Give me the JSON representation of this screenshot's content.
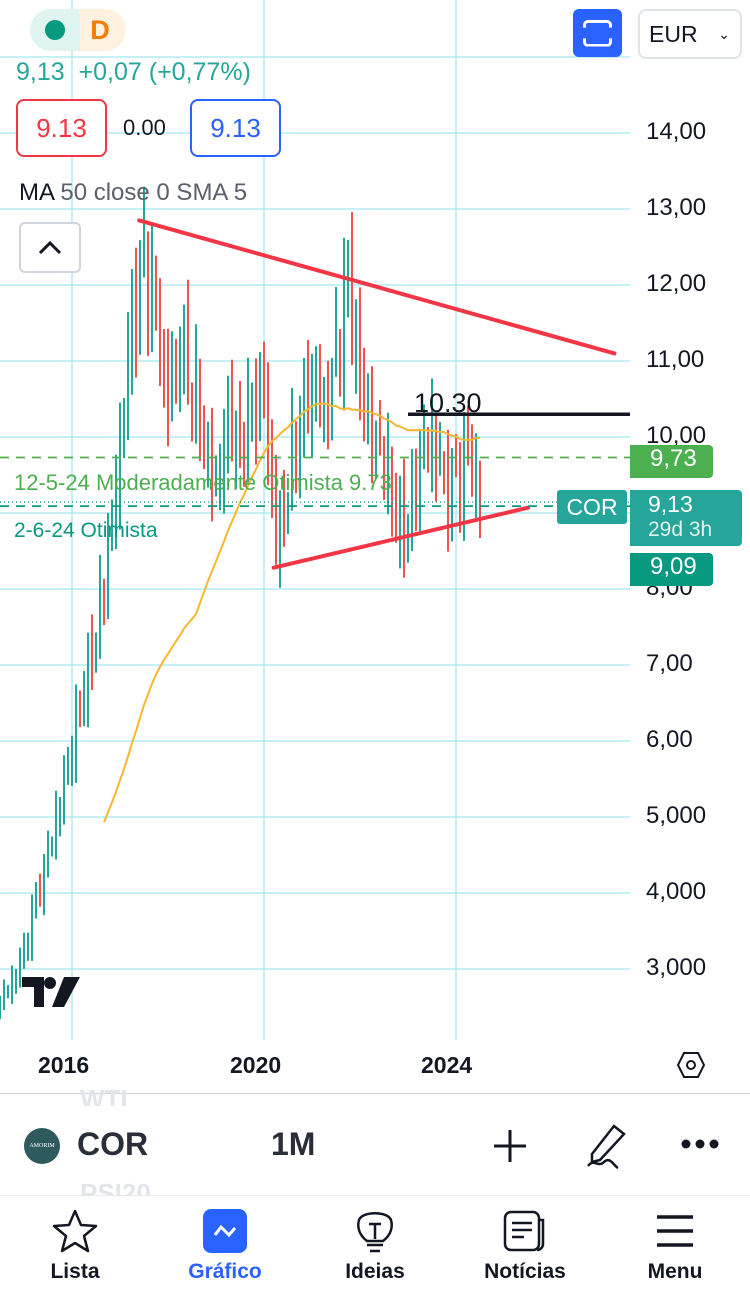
{
  "header": {
    "status_dot_color": "#089981",
    "interval_badge": "D",
    "quote": "9,13  +0,07 (+0,77%)",
    "sell_price": "9.13",
    "spread": "0.00",
    "buy_price": "9.13",
    "indicator_name": "MA",
    "indicator_params": "50 close 0 SMA 5",
    "currency": "EUR"
  },
  "chart_data": {
    "type": "candlestick",
    "symbol": "COR",
    "interval": "1M",
    "x_start": 2014.5,
    "x_ticks": [
      "2016",
      "2020",
      "2024"
    ],
    "y_ticks": [
      "14,00",
      "13,00",
      "12,00",
      "11,00",
      "10,00",
      "8,00",
      "7,00",
      "6,00",
      "5,000",
      "4,000",
      "3,000"
    ],
    "y_tick_values": [
      14,
      13,
      12,
      11,
      10,
      8,
      7,
      6,
      5,
      4,
      3
    ],
    "ylim": [
      2.3,
      15
    ],
    "quarterly_closes": [
      2.6,
      2.8,
      3.2,
      3.9,
      4.5,
      5.2,
      6.0,
      6.8,
      7.5,
      8.5,
      9.8,
      11.5,
      12.3,
      11.5,
      10.5,
      11.3,
      10.8,
      10.0,
      9.3,
      10.2,
      9.8,
      10.3,
      10.6,
      8.6,
      9.5,
      10.3,
      10.8,
      10.3,
      11.0,
      12.0,
      10.6,
      10.0,
      9.8,
      9.0,
      8.9,
      9.8,
      10.0,
      9.3,
      9.3,
      9.8,
      9.13
    ],
    "moving_average": {
      "label": "MA 50",
      "color": "#f7b731"
    },
    "colors": {
      "up": "#26a69a",
      "down": "#ef5350",
      "grid": "#b2ebf2"
    },
    "trendlines": [
      {
        "from": [
          2017.4,
          12.85
        ],
        "to": [
          2027.3,
          11.1
        ],
        "color": "#f23645"
      },
      {
        "from": [
          2020.2,
          8.28
        ],
        "to": [
          2025.5,
          9.07
        ],
        "color": "#f23645"
      }
    ],
    "levels": [
      {
        "value": 10.3,
        "label": "10.30",
        "color": "#131722",
        "from": 2023.0
      },
      {
        "value": 9.73,
        "label": "12-5-24 Moderadamente Otimista 9.73",
        "color": "#4caf50",
        "style": "dashed"
      },
      {
        "value": 9.13,
        "label": "2-6-24 Otimista",
        "color": "#089981",
        "style": "dashed"
      }
    ],
    "price_badges": [
      {
        "value": "9,73",
        "color": "#4caf50"
      },
      {
        "symbol": "COR",
        "value": "9,13",
        "countdown": "29d 3h",
        "color": "#26a69a"
      },
      {
        "value": "9,09",
        "color": "#089981"
      }
    ]
  },
  "toolbar": {
    "symbol": "COR",
    "interval": "1M",
    "ghost_above": "WTI",
    "ghost_below": "PSI20",
    "logo_text": "AMORIM"
  },
  "tabs": [
    {
      "label": "Lista"
    },
    {
      "label": "Gráfico",
      "active": true
    },
    {
      "label": "Ideias"
    },
    {
      "label": "Notícias"
    },
    {
      "label": "Menu"
    }
  ],
  "accent": "#2962ff"
}
